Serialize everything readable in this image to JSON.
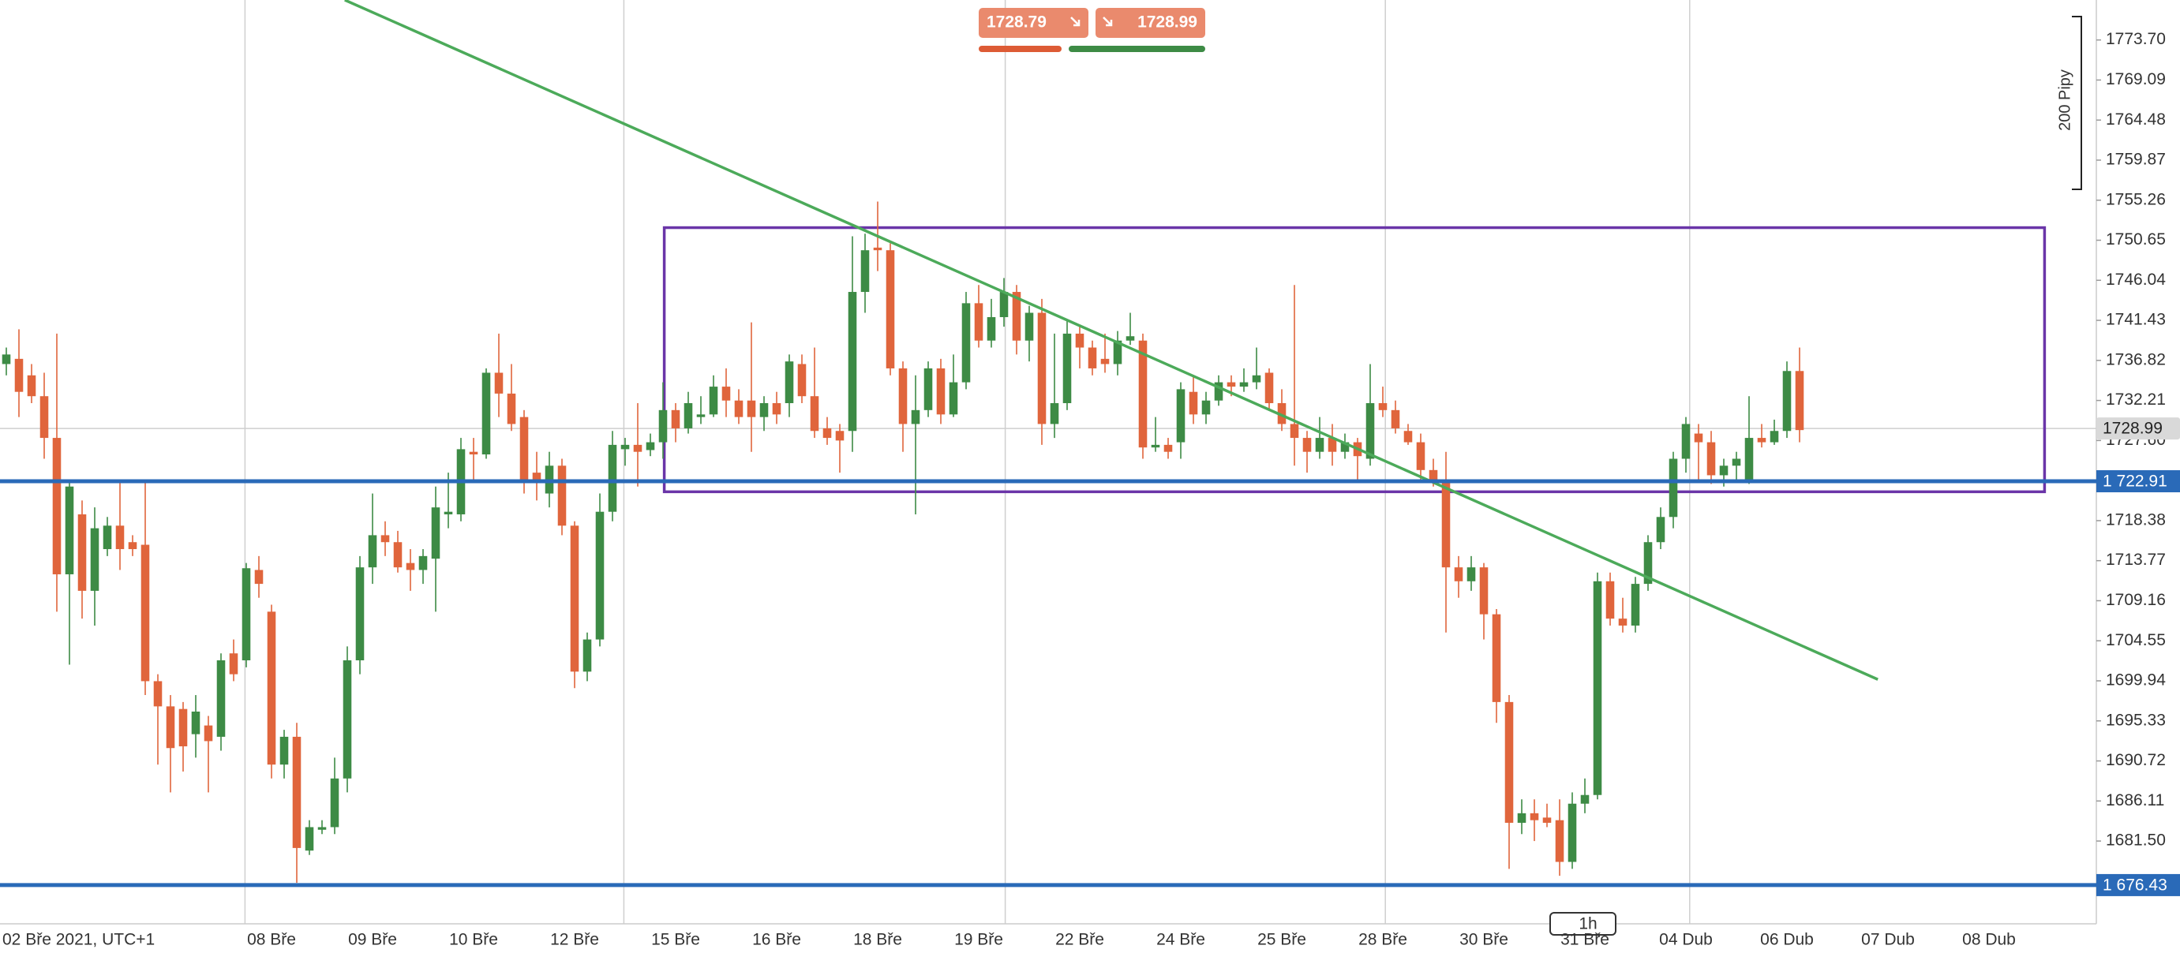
{
  "chart_data": {
    "type": "candlestick",
    "bid": 1728.79,
    "ask": 1728.99,
    "timeframe": "1h",
    "pip_scale_label": "200 Pipy",
    "up_color": "#3d8b45",
    "down_color": "#e0653c",
    "categories": [
      "02 Bře 2021, UTC+1",
      null,
      null,
      null,
      null,
      null,
      null,
      null,
      null,
      null,
      null,
      null,
      null,
      null,
      null,
      null,
      null,
      null,
      null,
      null,
      null,
      "08 Bře",
      null,
      null,
      null,
      null,
      null,
      null,
      null,
      "09 Bře",
      null,
      null,
      null,
      null,
      null,
      null,
      null,
      "10 Bře",
      null,
      null,
      null,
      null,
      null,
      null,
      null,
      "12 Bře",
      null,
      null,
      null,
      null,
      null,
      null,
      null,
      "15 Bře",
      null,
      null,
      null,
      null,
      null,
      null,
      null,
      "16 Bře",
      null,
      null,
      null,
      null,
      null,
      null,
      null,
      "18 Bře",
      null,
      null,
      null,
      null,
      null,
      null,
      null,
      "19 Bře",
      null,
      null,
      null,
      null,
      null,
      null,
      null,
      "22 Bře",
      null,
      null,
      null,
      null,
      null,
      null,
      null,
      "24 Bře",
      null,
      null,
      null,
      null,
      null,
      null,
      null,
      "25 Bře",
      null,
      null,
      null,
      null,
      null,
      null,
      null,
      "28 Bře",
      null,
      null,
      null,
      null,
      null,
      null,
      null,
      "30 Bře",
      null,
      null,
      null,
      null,
      null,
      null,
      null,
      "31 Bře",
      null,
      null,
      null,
      null,
      null,
      null,
      null,
      "04 Dub",
      null,
      null,
      null,
      null,
      null,
      null,
      null,
      "06 Dub",
      null,
      null,
      null,
      null,
      null,
      null,
      null,
      "07 Dub",
      null,
      null,
      null,
      null,
      null,
      null,
      null,
      "08 Dub",
      null,
      null,
      null,
      null,
      null,
      null,
      null,
      null
    ],
    "open": [
      1736.4,
      1737.0,
      1735.1,
      1732.7,
      1727.9,
      1712.2,
      1719.1,
      1710.3,
      1715.1,
      1717.8,
      1715.9,
      1715.6,
      1699.9,
      1697.0,
      1696.7,
      1693.8,
      1694.8,
      1693.5,
      1703.1,
      1702.3,
      1712.7,
      1707.9,
      1690.3,
      1693.5,
      1680.4,
      1682.8,
      1683.1,
      1688.7,
      1702.3,
      1713.0,
      1716.7,
      1715.9,
      1713.5,
      1712.7,
      1714.0,
      1719.1,
      1719.1,
      1726.3,
      1726.0,
      1735.4,
      1733.0,
      1730.3,
      1723.9,
      1721.5,
      1724.7,
      1717.8,
      1701.0,
      1704.7,
      1719.4,
      1726.6,
      1727.1,
      1726.5,
      1727.4,
      1731.1,
      1729.0,
      1730.3,
      1730.6,
      1733.8,
      1732.2,
      1732.2,
      1730.3,
      1731.9,
      1731.9,
      1736.4,
      1732.7,
      1729.0,
      1728.7,
      1728.7,
      1744.7,
      1749.8,
      1749.5,
      1735.9,
      1729.5,
      1731.1,
      1735.9,
      1730.6,
      1734.3,
      1743.4,
      1739.1,
      1741.8,
      1744.7,
      1739.1,
      1742.3,
      1729.5,
      1731.9,
      1739.9,
      1738.3,
      1737.0,
      1736.4,
      1739.1,
      1739.1,
      1726.8,
      1727.1,
      1727.4,
      1733.2,
      1730.6,
      1732.2,
      1734.3,
      1733.8,
      1734.3,
      1735.4,
      1731.9,
      1729.5,
      1727.9,
      1726.3,
      1727.9,
      1726.3,
      1727.4,
      1725.5,
      1731.9,
      1731.1,
      1728.7,
      1727.4,
      1724.2,
      1723.1,
      1713.0,
      1711.4,
      1713.0,
      1707.6,
      1697.5,
      1683.6,
      1684.7,
      1684.2,
      1683.9,
      1679.1,
      1685.8,
      1686.8,
      1711.4,
      1707.1,
      1706.3,
      1711.1,
      1715.9,
      1718.8,
      1725.5,
      1728.4,
      1727.4,
      1723.6,
      1724.7,
      1723.1,
      1727.9,
      1727.4,
      1728.7,
      1735.6,
      null,
      null,
      null,
      null,
      null,
      null,
      null,
      null,
      null,
      null,
      null,
      null,
      null,
      null,
      null,
      null,
      null,
      null,
      null,
      null,
      null,
      null,
      null
    ],
    "high": [
      1738.3,
      1740.4,
      1736.4,
      1735.4,
      1739.9,
      1723.1,
      1720.7,
      1719.9,
      1718.8,
      1723.1,
      1716.7,
      1723.1,
      1700.7,
      1698.3,
      1697.5,
      1698.3,
      1695.9,
      1703.1,
      1704.7,
      1713.5,
      1714.3,
      1708.7,
      1694.3,
      1695.1,
      1683.9,
      1683.9,
      1691.1,
      1703.9,
      1714.3,
      1721.5,
      1718.3,
      1717.2,
      1715.1,
      1715.1,
      1722.3,
      1723.9,
      1727.9,
      1727.9,
      1735.9,
      1739.9,
      1736.4,
      1731.1,
      1726.3,
      1726.3,
      1725.5,
      1718.3,
      1705.5,
      1721.5,
      1728.7,
      1727.9,
      1731.9,
      1728.4,
      1734.3,
      1731.9,
      1733.2,
      1732.7,
      1735.1,
      1735.9,
      1733.5,
      1741.2,
      1732.7,
      1733.2,
      1737.5,
      1737.5,
      1738.3,
      1730.3,
      1729.5,
      1751.1,
      1751.4,
      1755.1,
      1750.3,
      1736.7,
      1735.1,
      1736.7,
      1737.0,
      1737.5,
      1744.7,
      1745.5,
      1743.9,
      1746.3,
      1745.5,
      1743.1,
      1743.9,
      1739.9,
      1741.5,
      1740.7,
      1739.1,
      1739.9,
      1740.2,
      1742.3,
      1739.9,
      1730.3,
      1727.9,
      1734.3,
      1735.1,
      1733.2,
      1735.1,
      1735.1,
      1735.9,
      1738.3,
      1735.9,
      1733.5,
      1745.5,
      1728.7,
      1730.3,
      1729.5,
      1728.4,
      1727.9,
      1736.4,
      1733.8,
      1732.2,
      1729.5,
      1728.4,
      1725.5,
      1726.3,
      1714.3,
      1714.3,
      1713.5,
      1708.2,
      1698.3,
      1686.3,
      1686.3,
      1685.8,
      1686.3,
      1687.1,
      1688.7,
      1712.4,
      1712.4,
      1709.5,
      1711.9,
      1716.7,
      1719.9,
      1726.3,
      1730.3,
      1729.5,
      1728.7,
      1725.5,
      1726.3,
      1732.7,
      1729.5,
      1730.0,
      1736.7,
      1738.3,
      null,
      null,
      null,
      null,
      null,
      null,
      null,
      null,
      null,
      null,
      null,
      null,
      null,
      null,
      null,
      null,
      null,
      null,
      null,
      null,
      null,
      null,
      null
    ],
    "low": [
      1735.1,
      1730.3,
      1731.9,
      1725.5,
      1707.9,
      1701.8,
      1707.1,
      1706.3,
      1714.3,
      1712.7,
      1714.3,
      1698.3,
      1690.3,
      1687.1,
      1689.5,
      1691.1,
      1687.1,
      1691.9,
      1699.9,
      1701.5,
      1709.5,
      1688.7,
      1688.7,
      1676.7,
      1679.9,
      1682.3,
      1682.3,
      1687.1,
      1700.7,
      1711.1,
      1714.3,
      1712.4,
      1710.3,
      1711.1,
      1707.9,
      1717.5,
      1718.3,
      1723.1,
      1725.5,
      1730.3,
      1728.7,
      1721.5,
      1720.7,
      1719.9,
      1716.7,
      1699.1,
      1699.9,
      1703.9,
      1718.3,
      1724.7,
      1722.3,
      1725.8,
      1725.5,
      1727.4,
      1728.4,
      1729.5,
      1730.3,
      1730.3,
      1729.5,
      1726.3,
      1728.7,
      1729.5,
      1730.3,
      1731.9,
      1727.9,
      1727.1,
      1723.9,
      1726.3,
      1742.3,
      1747.1,
      1735.1,
      1726.3,
      1719.1,
      1730.3,
      1729.5,
      1730.3,
      1733.5,
      1738.3,
      1738.3,
      1740.7,
      1737.5,
      1736.7,
      1727.1,
      1727.9,
      1731.1,
      1735.9,
      1735.1,
      1735.4,
      1735.1,
      1738.6,
      1725.5,
      1726.3,
      1725.5,
      1725.5,
      1729.5,
      1729.5,
      1731.6,
      1732.7,
      1733.2,
      1733.5,
      1731.1,
      1728.7,
      1724.7,
      1723.9,
      1725.5,
      1724.7,
      1725.5,
      1723.1,
      1724.7,
      1730.3,
      1728.4,
      1727.1,
      1723.1,
      1722.3,
      1705.5,
      1709.5,
      1710.3,
      1704.7,
      1695.1,
      1678.3,
      1682.3,
      1681.5,
      1683.1,
      1677.5,
      1678.3,
      1684.7,
      1686.3,
      1706.3,
      1705.5,
      1705.5,
      1710.3,
      1715.1,
      1717.5,
      1723.9,
      1723.1,
      1722.6,
      1722.3,
      1723.1,
      1722.6,
      1726.8,
      1727.1,
      1727.9,
      1727.4,
      null,
      null,
      null,
      null,
      null,
      null,
      null,
      null,
      null,
      null,
      null,
      null,
      null,
      null,
      null,
      null,
      null,
      null,
      null,
      null,
      null,
      null,
      null
    ],
    "close": [
      1737.5,
      1733.2,
      1732.7,
      1727.9,
      1712.2,
      1722.3,
      1710.3,
      1717.5,
      1717.8,
      1715.1,
      1715.1,
      1699.9,
      1697.0,
      1692.2,
      1692.4,
      1696.4,
      1693.0,
      1702.3,
      1700.7,
      1712.9,
      1711.1,
      1690.3,
      1693.5,
      1680.7,
      1683.1,
      1683.1,
      1688.7,
      1702.3,
      1713.0,
      1716.7,
      1715.9,
      1713.0,
      1712.7,
      1714.3,
      1719.9,
      1719.4,
      1726.6,
      1726.0,
      1735.4,
      1733.0,
      1729.5,
      1723.1,
      1723.1,
      1724.7,
      1717.8,
      1701.0,
      1704.7,
      1719.4,
      1727.1,
      1727.1,
      1726.3,
      1727.4,
      1731.1,
      1729.0,
      1731.9,
      1730.6,
      1733.8,
      1732.2,
      1730.3,
      1730.3,
      1731.9,
      1730.6,
      1736.7,
      1732.7,
      1728.7,
      1727.9,
      1727.6,
      1744.7,
      1749.5,
      1749.5,
      1735.9,
      1729.5,
      1731.1,
      1735.9,
      1730.6,
      1734.3,
      1743.4,
      1739.1,
      1741.8,
      1744.7,
      1739.1,
      1742.3,
      1729.5,
      1731.9,
      1739.9,
      1738.3,
      1735.9,
      1736.4,
      1739.1,
      1739.6,
      1726.8,
      1727.1,
      1726.3,
      1733.5,
      1730.6,
      1732.2,
      1734.3,
      1733.8,
      1734.3,
      1735.1,
      1731.9,
      1729.5,
      1727.9,
      1726.3,
      1727.9,
      1726.3,
      1727.4,
      1725.8,
      1731.9,
      1731.1,
      1729.0,
      1727.4,
      1724.2,
      1723.1,
      1713.0,
      1711.4,
      1713.0,
      1707.6,
      1697.5,
      1683.6,
      1684.7,
      1683.9,
      1683.6,
      1679.1,
      1685.8,
      1686.8,
      1711.4,
      1707.1,
      1706.3,
      1711.1,
      1715.9,
      1718.8,
      1725.5,
      1729.5,
      1727.4,
      1723.6,
      1724.7,
      1725.5,
      1727.9,
      1727.4,
      1728.7,
      1735.6,
      1728.8,
      null,
      null,
      null,
      null,
      null,
      null,
      null,
      null,
      null,
      null,
      null,
      null,
      null,
      null,
      null,
      null,
      null,
      null,
      null,
      null,
      null,
      null,
      null
    ],
    "ylim": [
      1672.7,
      1778.3
    ],
    "yticks": [
      {
        "value": 1773.7,
        "label": "1773.70"
      },
      1769.09,
      1764.48,
      1759.87,
      1755.26,
      1750.65,
      1746.04,
      1741.43,
      1736.82,
      1732.21,
      {
        "value": 1727.6,
        "label": "1727.60"
      },
      1718.38,
      1713.77,
      1709.16,
      1704.55,
      1699.94,
      1695.33,
      1690.72,
      1686.11,
      {
        "value": 1681.5,
        "label": "1681.50"
      }
    ],
    "xgrid": [
      18.9,
      48.9,
      79.1,
      109.2,
      133.3
    ],
    "levels": [
      {
        "value": 1722.91,
        "label": "1 722.91",
        "color": "#2a6ab8"
      },
      {
        "value": 1676.43,
        "label": "1 676.43",
        "color": "#2a6ab8"
      }
    ],
    "rectangle": {
      "x": [
        52.1,
        161.4
      ],
      "y": [
        1721.7,
        1752.1
      ],
      "color": "#6a35a8"
    },
    "trendline": {
      "x": [
        26.8,
        148.2
      ],
      "y": [
        1778.3,
        1700.1
      ],
      "color": "#4caa5a"
    }
  }
}
